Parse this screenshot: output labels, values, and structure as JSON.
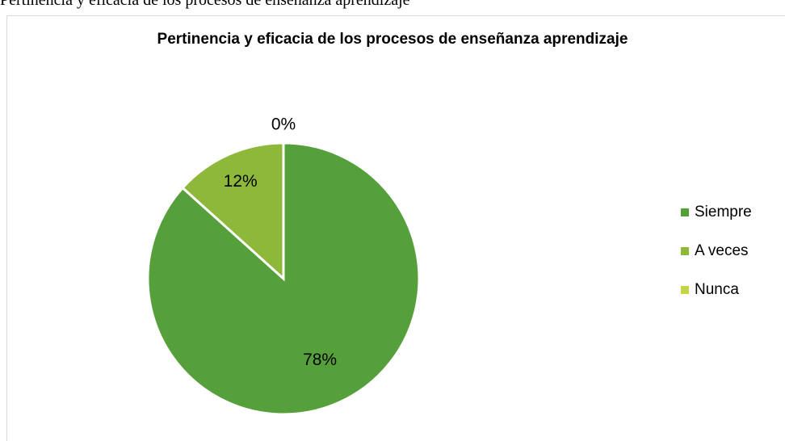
{
  "caption": "Pertinencia y eficacia de los procesos de enseñanza aprendizaje",
  "chart_data": {
    "type": "pie",
    "title": "Pertinencia y eficacia de los procesos de enseñanza aprendizaje",
    "categories": [
      "Siempre",
      "A veces",
      "Nunca"
    ],
    "values": [
      78,
      12,
      0
    ],
    "value_labels": [
      "78%",
      "12%",
      "0%"
    ],
    "colors": [
      "#55a03b",
      "#8db83a",
      "#c3d545"
    ],
    "legend": "right"
  }
}
